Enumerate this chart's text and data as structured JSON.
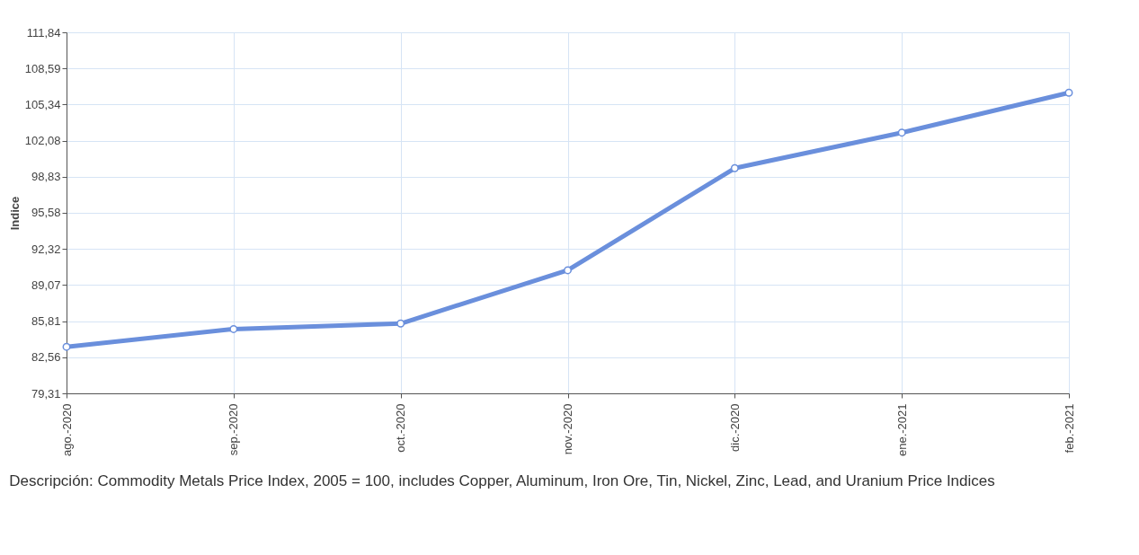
{
  "chart_data": {
    "type": "line",
    "ylabel": "Indice",
    "categories": [
      "ago.-2020",
      "sep.-2020",
      "oct.-2020",
      "nov.-2020",
      "dic.-2020",
      "ene.-2021",
      "feb.-2021"
    ],
    "series": [
      {
        "color": "#6a8fdc",
        "values": [
          83.5,
          85.1,
          85.6,
          90.4,
          99.6,
          102.8,
          106.4
        ]
      }
    ],
    "ylim": [
      79.31,
      111.84
    ],
    "yticks": [
      {
        "value": 79.31,
        "label": "79,31"
      },
      {
        "value": 82.56,
        "label": "82,56"
      },
      {
        "value": 85.81,
        "label": "85,81"
      },
      {
        "value": 89.07,
        "label": "89,07"
      },
      {
        "value": 92.32,
        "label": "92,32"
      },
      {
        "value": 95.58,
        "label": "95,58"
      },
      {
        "value": 98.83,
        "label": "98,83"
      },
      {
        "value": 102.08,
        "label": "102,08"
      },
      {
        "value": 105.34,
        "label": "105,34"
      },
      {
        "value": 108.59,
        "label": "108,59"
      },
      {
        "value": 111.84,
        "label": "111,84"
      }
    ],
    "grid": true,
    "marker": "circle",
    "line_style": "solid",
    "legend": false,
    "annotations": [
      "Descripción: Commodity Metals Price Index, 2005 = 100, includes Copper, Aluminum, Iron Ore, Tin, Nickel, Zinc, Lead, and Uranium Price Indices"
    ]
  }
}
